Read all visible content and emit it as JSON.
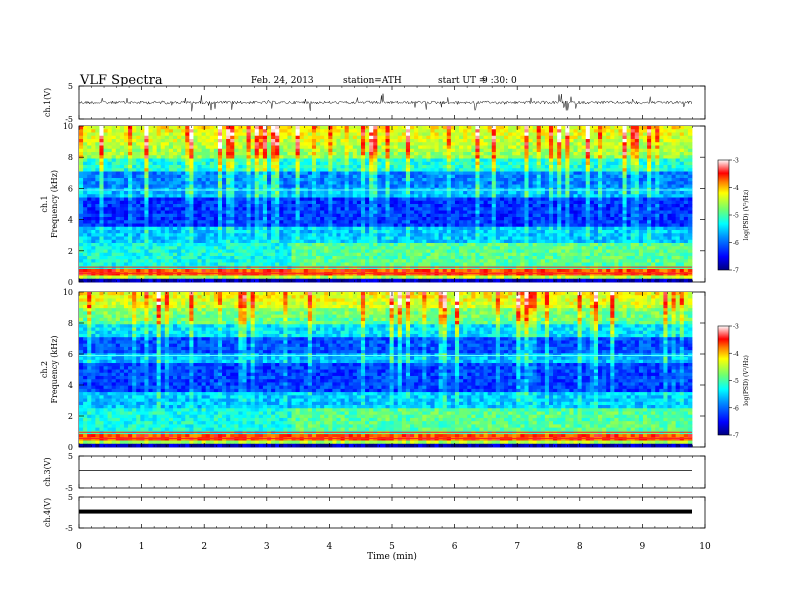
{
  "header": {
    "title": "VLF  Spectra",
    "date": "Feb. 24, 2013",
    "station": "station=ATH",
    "start_label": "start  UT  =",
    "start_time": "9 :30: 0"
  },
  "chart_data": [
    {
      "type": "line",
      "ylabel": "ch.1(V)",
      "ylim": [
        -5,
        5
      ],
      "yticks": [
        "5",
        "-5"
      ],
      "description_series": "noisy waveform near 0 V with frequent spikes"
    },
    {
      "type": "heatmap",
      "ylabel": "ch.1\nFrequency (kHz)",
      "ylim": [
        0,
        10
      ],
      "yticks": [
        "0",
        "2",
        "4",
        "6",
        "8",
        "10"
      ],
      "colorbar": {
        "label": "log(PSD) (V²/Hz)",
        "ticks": [
          "-3",
          "-4",
          "-5",
          "-6",
          "-7"
        ],
        "range": [
          -7,
          -3
        ]
      }
    },
    {
      "type": "heatmap",
      "ylabel": "ch.2\nFrequency (kHz)",
      "ylim": [
        0,
        10
      ],
      "yticks": [
        "0",
        "2",
        "4",
        "6",
        "8",
        "10"
      ],
      "colorbar": {
        "label": "log(PSD) (V²/Hz)",
        "ticks": [
          "-3",
          "-4",
          "-5",
          "-6",
          "-7"
        ],
        "range": [
          -7,
          -3
        ]
      }
    },
    {
      "type": "line",
      "ylabel": "ch.3(V)",
      "ylim": [
        -5,
        5
      ],
      "yticks": [
        "5",
        "-5"
      ]
    },
    {
      "type": "line",
      "ylabel": "ch.4(V)",
      "ylim": [
        -5,
        5
      ],
      "yticks": [
        "5",
        "-5"
      ]
    }
  ],
  "xaxis": {
    "label": "Time  (min)",
    "range": [
      0,
      10
    ],
    "ticks": [
      "0",
      "1",
      "2",
      "3",
      "4",
      "5",
      "6",
      "7",
      "8",
      "9",
      "10"
    ]
  },
  "colors": {
    "scale": [
      "#00007f",
      "#0000ff",
      "#0080ff",
      "#00ffff",
      "#80ff80",
      "#ffff00",
      "#ff8000",
      "#ff0000",
      "#ffffff"
    ]
  }
}
